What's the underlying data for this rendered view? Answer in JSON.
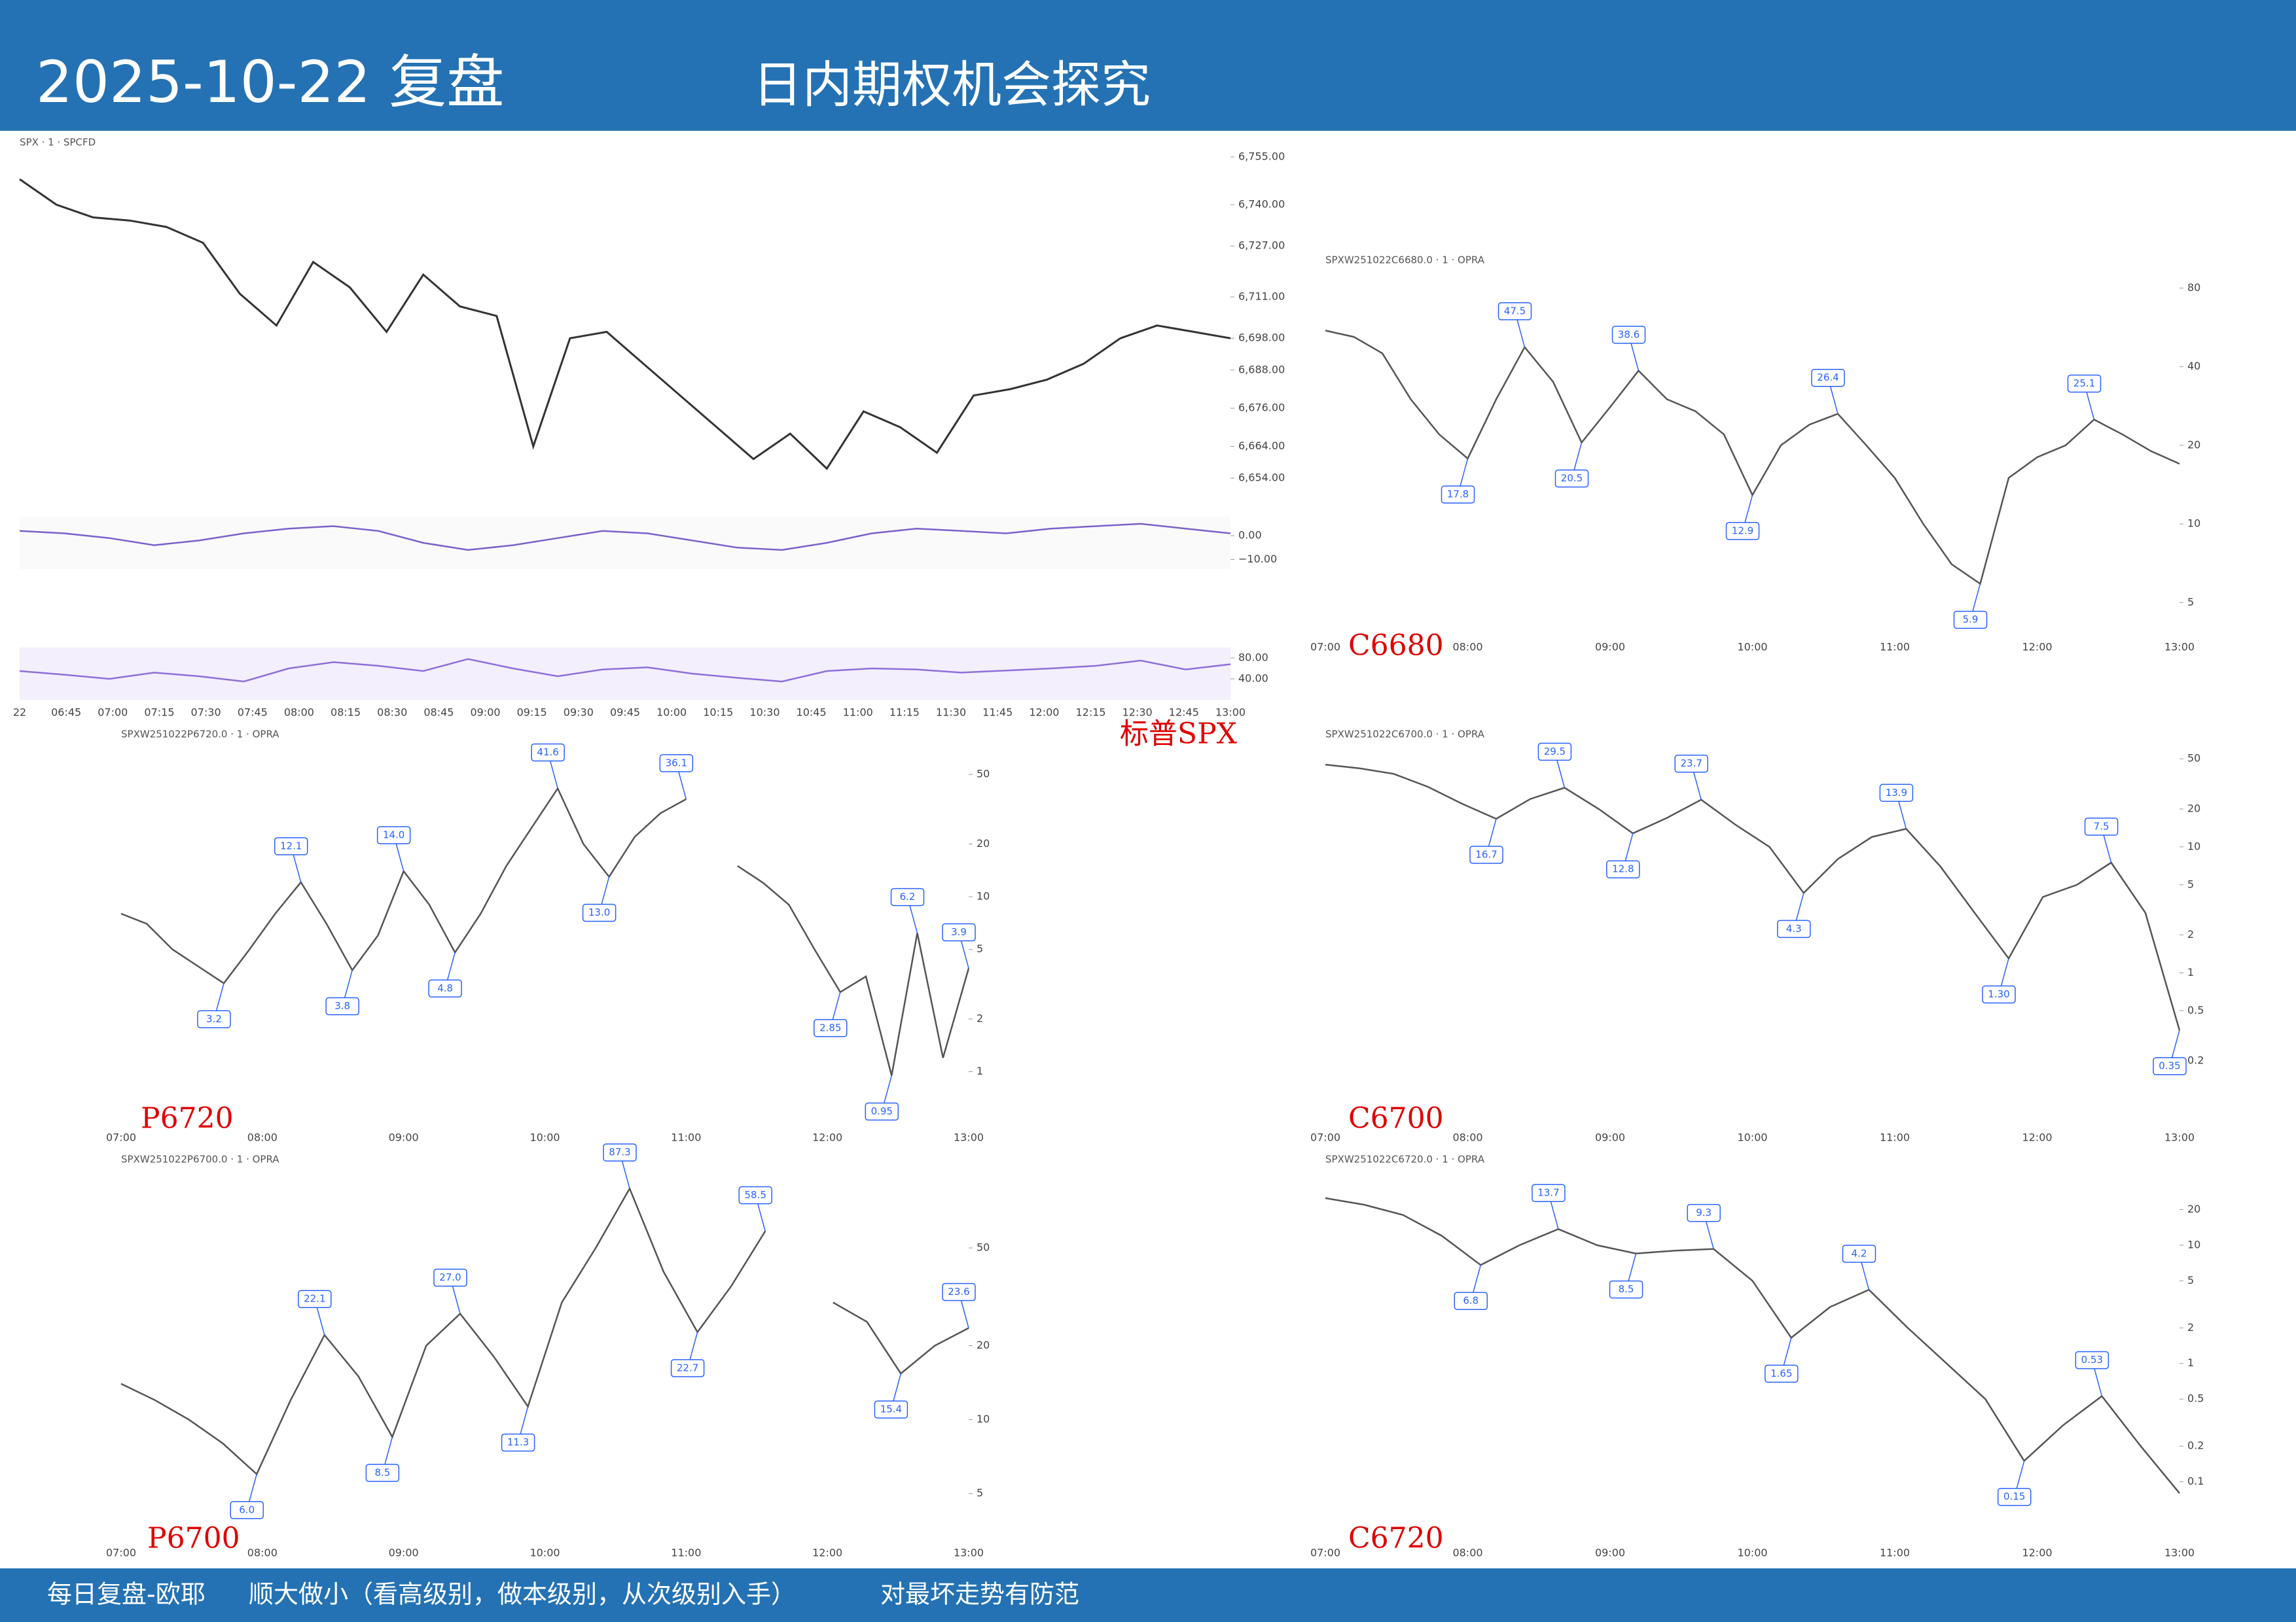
{
  "header": {
    "title": "2025-10-22 复盘",
    "subtitle": "日内期权机会探究"
  },
  "panels": [
    {
      "label": "标普SPX",
      "symbol": "SPX · 1 · SPCFD",
      "values": [
        6748,
        6740,
        6736,
        6735,
        6733,
        6728,
        6712,
        6702,
        6722,
        6714,
        6700,
        6718,
        6708,
        6705,
        6664,
        6698,
        6700,
        6690,
        6680,
        6670,
        6660,
        6668,
        6657,
        6675,
        6670,
        6662,
        6680,
        6682,
        6685,
        6690,
        6698,
        6702,
        6700,
        6698
      ],
      "ylim": [
        6646,
        6755
      ],
      "yticks": [
        {
          "value": 6654,
          "label": "6,654.00"
        },
        {
          "value": 6664,
          "label": "6,664.00"
        },
        {
          "value": 6676,
          "label": "6,676.00"
        },
        {
          "value": 6688,
          "label": "6,688.00"
        },
        {
          "value": 6698,
          "label": "6,698.00"
        },
        {
          "value": 6711,
          "label": "6,711.00"
        },
        {
          "value": 6727,
          "label": "6,727.00"
        },
        {
          "value": 6740,
          "label": "6,740.00"
        },
        {
          "value": 6755,
          "label": "6,755.00"
        }
      ],
      "time_labels": [
        "22",
        "06:45",
        "07:00",
        "07:15",
        "07:30",
        "07:45",
        "08:00",
        "08:15",
        "08:30",
        "08:45",
        "09:00",
        "09:15",
        "09:30",
        "09:45",
        "10:00",
        "10:15",
        "10:30",
        "10:45",
        "11:00",
        "11:15",
        "11:30",
        "11:45",
        "12:00",
        "12:15",
        "12:30",
        "12:45",
        "13:00"
      ],
      "macd": {
        "values": [
          2,
          1,
          -1,
          -4,
          -2,
          1,
          3,
          4,
          2,
          -3,
          -6,
          -4,
          -1,
          2,
          1,
          -2,
          -5,
          -6,
          -3,
          1,
          3,
          2,
          1,
          3,
          4,
          5,
          3,
          1
        ],
        "ylim": [
          -14,
          8
        ],
        "yticks": [
          {
            "value": 0,
            "label": "0.00"
          },
          {
            "value": -10,
            "label": "−10.00"
          }
        ]
      },
      "rsi": {
        "values": [
          55,
          48,
          40,
          52,
          45,
          35,
          60,
          72,
          65,
          55,
          78,
          60,
          45,
          58,
          62,
          50,
          42,
          35,
          55,
          60,
          58,
          52,
          56,
          60,
          65,
          75,
          58,
          68
        ],
        "ylim": [
          0,
          100
        ],
        "yticks": [
          {
            "value": 40,
            "label": "40.00"
          },
          {
            "value": 80,
            "label": "80.00"
          }
        ]
      }
    },
    {
      "label": "C6680",
      "symbol": "SPXW251022C6680.0 · 1 · OPRA",
      "log": true,
      "values": [
        55,
        52,
        45,
        30,
        22,
        17.8,
        30,
        47.5,
        35,
        20.5,
        28,
        38.6,
        30,
        27,
        22,
        12.9,
        20,
        24,
        26.4,
        20,
        15,
        10,
        7,
        5.9,
        15,
        18,
        20,
        25.1,
        22,
        19,
        17
      ],
      "value_labels": [
        null,
        null,
        null,
        null,
        null,
        "17.8",
        null,
        "47.5",
        null,
        "20.5",
        null,
        "38.6",
        null,
        null,
        null,
        "12.9",
        null,
        null,
        "26.4",
        null,
        null,
        null,
        null,
        "5.9",
        null,
        null,
        null,
        "25.1",
        null,
        null,
        null
      ],
      "ylim": [
        4,
        90
      ],
      "yticks": [
        5,
        10,
        20,
        40,
        80
      ],
      "time_labels": [
        "07:00",
        "08:00",
        "09:00",
        "10:00",
        "11:00",
        "12:00",
        "13:00"
      ]
    },
    {
      "label": "P6720",
      "symbol": "SPXW251022P6720.0 · 1 · OPRA",
      "log": true,
      "values": [
        8,
        7,
        5,
        4,
        3.2,
        5,
        8,
        12.1,
        7,
        3.8,
        6,
        14.0,
        9,
        4.8,
        8,
        15,
        25,
        41.6,
        20,
        13.0,
        22,
        30,
        36.1,
        null,
        15,
        12,
        9,
        5,
        2.85,
        3.5,
        0.95,
        6.2,
        1.2,
        3.9
      ],
      "value_labels": [
        null,
        null,
        null,
        null,
        "3.2",
        null,
        null,
        "12.1",
        null,
        "3.8",
        null,
        "14.0",
        null,
        "4.8",
        null,
        null,
        null,
        "41.6",
        null,
        "13.0",
        null,
        null,
        "36.1",
        null,
        null,
        null,
        null,
        null,
        "2.85",
        null,
        "0.95",
        "6.2",
        null,
        "3.9"
      ],
      "ylim": [
        0.7,
        70
      ],
      "yticks": [
        1,
        2,
        5,
        10,
        20,
        50
      ],
      "time_labels": [
        "07:00",
        "08:00",
        "09:00",
        "10:00",
        "11:00",
        "12:00",
        "13:00"
      ]
    },
    {
      "label": "C6700",
      "symbol": "SPXW251022C6700.0 · 1 · OPRA",
      "log": true,
      "values": [
        45,
        42,
        38,
        30,
        22,
        16.7,
        24,
        29.5,
        20,
        12.8,
        17,
        23.7,
        15,
        10,
        4.3,
        8,
        12,
        13.9,
        7,
        3,
        1.3,
        4,
        5,
        7.5,
        3,
        0.35
      ],
      "value_labels": [
        null,
        null,
        null,
        null,
        null,
        "16.7",
        null,
        "29.5",
        null,
        "12.8",
        null,
        "23.7",
        null,
        null,
        "4.3",
        null,
        null,
        "13.9",
        null,
        null,
        "1.30",
        null,
        null,
        "7.5",
        null,
        "0.35"
      ],
      "ylim": [
        0.1,
        60
      ],
      "yticks": [
        0.2,
        0.5,
        1,
        2,
        5,
        10,
        20,
        50
      ],
      "time_labels": [
        "07:00",
        "08:00",
        "09:00",
        "10:00",
        "11:00",
        "12:00",
        "13:00"
      ]
    },
    {
      "label": "P6700",
      "symbol": "SPXW251022P6700.0 · 1 · OPRA",
      "log": true,
      "values": [
        14,
        12,
        10,
        8,
        6.0,
        12,
        22.1,
        15,
        8.5,
        20,
        27.0,
        18,
        11.3,
        30,
        50,
        87.3,
        40,
        22.7,
        35,
        58.5,
        null,
        30,
        25,
        15.4,
        20,
        23.6
      ],
      "value_labels": [
        null,
        null,
        null,
        null,
        "6.0",
        null,
        "22.1",
        null,
        "8.5",
        null,
        "27.0",
        null,
        "11.3",
        null,
        null,
        "87.3",
        null,
        "22.7",
        null,
        "58.5",
        null,
        null,
        null,
        "15.4",
        null,
        "23.6"
      ],
      "ylim": [
        4,
        100
      ],
      "yticks": [
        5,
        10,
        20,
        50
      ],
      "time_labels": [
        "07:00",
        "08:00",
        "09:00",
        "10:00",
        "11:00",
        "12:00",
        "13:00"
      ]
    },
    {
      "label": "C6720",
      "symbol": "SPXW251022C6720.0 · 1 · OPRA",
      "log": true,
      "values": [
        25,
        22,
        18,
        12,
        6.8,
        10,
        13.7,
        10,
        8.5,
        9,
        9.3,
        5,
        1.65,
        3,
        4.2,
        2,
        1,
        0.5,
        0.15,
        0.3,
        0.53,
        0.2,
        0.08
      ],
      "value_labels": [
        null,
        null,
        null,
        null,
        "6.8",
        null,
        "13.7",
        null,
        "8.5",
        null,
        "9.3",
        null,
        "1.65",
        null,
        "4.2",
        null,
        null,
        null,
        "0.15",
        null,
        "0.53",
        null,
        null
      ],
      "ylim": [
        0.05,
        40
      ],
      "yticks": [
        0.1,
        0.2,
        0.5,
        1,
        2,
        5,
        10,
        20
      ],
      "time_labels": [
        "07:00",
        "08:00",
        "09:00",
        "10:00",
        "11:00",
        "12:00",
        "13:00"
      ]
    }
  ],
  "footer": {
    "left": "每日复盘-欧耶",
    "middle": "顺大做小（看高级别，做本级别，从次级别入手）",
    "right": "对最坏走势有防范"
  }
}
